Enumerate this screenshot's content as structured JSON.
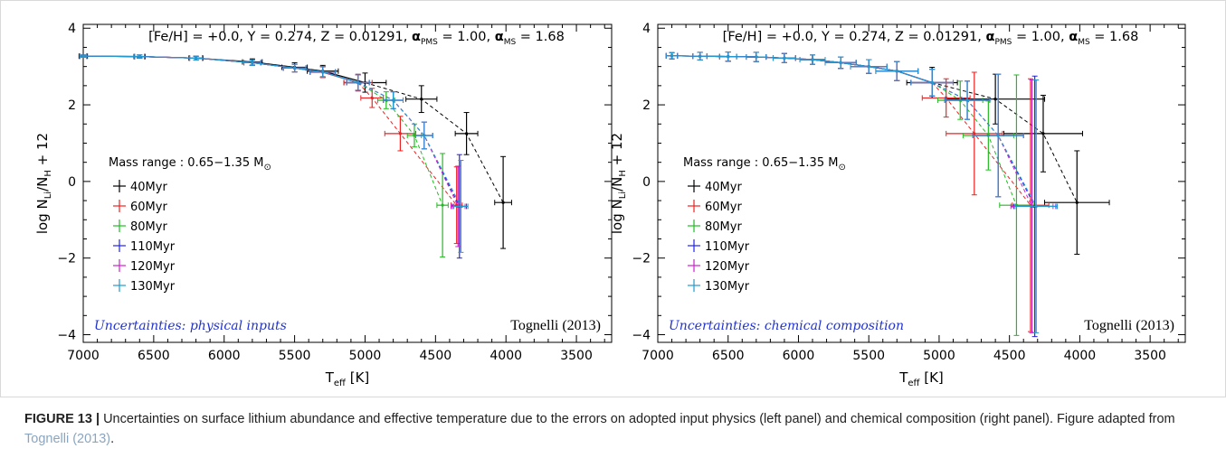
{
  "caption": {
    "label": "FIGURE 13 |",
    "text": "Uncertainties on surface lithium abundance and effective temperature due to the errors on adopted input physics (left panel) and chemical composition (right panel). Figure adapted from ",
    "ref": "Tognelli (2013)",
    "end": "."
  },
  "colors": {
    "40Myr": "#000000",
    "60Myr": "#ee2222",
    "80Myr": "#22bb22",
    "110Myr": "#2222ee",
    "120Myr": "#cc22cc",
    "130Myr": "#2299cc"
  },
  "chart_data": [
    {
      "type": "line",
      "title": "[Fe/H] = +0.0, Y = 0.274, Z = 0.01291, α_PMS = 1.00, α_MS = 1.68",
      "title_parts": {
        "main": "[Fe/H] = +0.0, Y = 0.274, Z = 0.01291, ",
        "a1": "α",
        "s1": "PMS",
        "v1": " = 1.00, ",
        "a2": "α",
        "s2": "MS",
        "v2": " = 1.68"
      },
      "xlabel": "T",
      "xlabel_sub": "eff",
      "xlabel_unit": " [K]",
      "ylabel": "log N",
      "ylabel_sub1": "Li",
      "ylabel_mid": "/N",
      "ylabel_sub2": "H",
      "ylabel_end": " + 12",
      "xlim": [
        7000,
        3250
      ],
      "ylim": [
        -4.2,
        4.1
      ],
      "xticks": [
        7000,
        6500,
        6000,
        5500,
        5000,
        4500,
        4000,
        3500
      ],
      "yticks": [
        -4,
        -2,
        0,
        2,
        4
      ],
      "legend_title": "Mass range : 0.65−1.35 M",
      "legend_sun": "⊙",
      "legend_placement": "center-left",
      "annotation": "Uncertainties: physical inputs",
      "reference": "Tognelli (2013)",
      "series": [
        {
          "name": "40Myr",
          "x": [
            7000,
            6600,
            6200,
            5800,
            5500,
            5300,
            5000,
            4600,
            4280,
            4020
          ],
          "y": [
            3.27,
            3.26,
            3.22,
            3.12,
            2.98,
            2.88,
            2.58,
            2.15,
            1.25,
            -0.55
          ],
          "xerr": [
            30,
            40,
            50,
            70,
            90,
            110,
            150,
            110,
            80,
            60
          ],
          "yerr": [
            0.03,
            0.04,
            0.05,
            0.08,
            0.12,
            0.15,
            0.25,
            0.35,
            0.55,
            1.2
          ]
        },
        {
          "name": "60Myr",
          "x": [
            7000,
            6600,
            6200,
            5800,
            5500,
            5300,
            5050,
            4950,
            4750,
            4350
          ],
          "y": [
            3.27,
            3.26,
            3.22,
            3.1,
            2.96,
            2.85,
            2.58,
            2.18,
            1.25,
            -0.62
          ],
          "xerr": [
            25,
            35,
            45,
            60,
            80,
            90,
            100,
            80,
            110,
            40
          ],
          "yerr": [
            0.03,
            0.04,
            0.05,
            0.07,
            0.1,
            0.14,
            0.22,
            0.25,
            0.45,
            1.0
          ]
        },
        {
          "name": "80Myr",
          "x": [
            7000,
            6600,
            6200,
            5800,
            5500,
            5300,
            5050,
            4850,
            4650,
            4450
          ],
          "y": [
            3.27,
            3.26,
            3.22,
            3.1,
            2.96,
            2.86,
            2.58,
            2.12,
            1.2,
            -0.62
          ],
          "xerr": [
            25,
            35,
            45,
            60,
            80,
            90,
            80,
            60,
            50,
            40
          ],
          "yerr": [
            0.03,
            0.04,
            0.05,
            0.07,
            0.1,
            0.14,
            0.2,
            0.22,
            0.3,
            1.35
          ]
        },
        {
          "name": "110Myr",
          "x": [
            7000,
            6600,
            6200,
            5800,
            5500,
            5300,
            5050,
            4800,
            4580,
            4330
          ],
          "y": [
            3.27,
            3.26,
            3.22,
            3.1,
            2.96,
            2.86,
            2.58,
            2.12,
            1.2,
            -0.65
          ],
          "xerr": [
            25,
            35,
            45,
            60,
            80,
            90,
            80,
            70,
            60,
            50
          ],
          "yerr": [
            0.03,
            0.04,
            0.05,
            0.07,
            0.1,
            0.14,
            0.2,
            0.22,
            0.35,
            1.35
          ]
        },
        {
          "name": "120Myr",
          "x": [
            7000,
            6600,
            6200,
            5800,
            5500,
            5300,
            5050,
            4800,
            4580,
            4340
          ],
          "y": [
            3.27,
            3.26,
            3.22,
            3.1,
            2.96,
            2.86,
            2.58,
            2.12,
            1.2,
            -0.65
          ],
          "xerr": [
            25,
            35,
            45,
            60,
            80,
            90,
            80,
            70,
            60,
            50
          ],
          "yerr": [
            0.03,
            0.04,
            0.05,
            0.07,
            0.1,
            0.14,
            0.2,
            0.22,
            0.35,
            1.05
          ]
        },
        {
          "name": "130Myr",
          "x": [
            7000,
            6600,
            6200,
            5800,
            5500,
            5300,
            5050,
            4800,
            4580,
            4320
          ],
          "y": [
            3.27,
            3.26,
            3.22,
            3.1,
            2.96,
            2.86,
            2.58,
            2.12,
            1.2,
            -0.65
          ],
          "xerr": [
            25,
            35,
            45,
            60,
            80,
            90,
            80,
            70,
            60,
            50
          ],
          "yerr": [
            0.03,
            0.04,
            0.05,
            0.07,
            0.1,
            0.14,
            0.2,
            0.22,
            0.35,
            1.2
          ]
        }
      ]
    },
    {
      "type": "line",
      "title": "[Fe/H] = +0.0, Y = 0.274, Z = 0.01291, α_PMS = 1.00, α_MS = 1.68",
      "title_parts": {
        "main": "[Fe/H] = +0.0, Y = 0.274, Z = 0.01291, ",
        "a1": "α",
        "s1": "PMS",
        "v1": " = 1.00, ",
        "a2": "α",
        "s2": "MS",
        "v2": " = 1.68"
      },
      "xlabel": "T",
      "xlabel_sub": "eff",
      "xlabel_unit": " [K]",
      "ylabel": "log N",
      "ylabel_sub1": "Li",
      "ylabel_mid": "/N",
      "ylabel_sub2": "H",
      "ylabel_end": " + 12",
      "xlim": [
        7000,
        3250
      ],
      "ylim": [
        -4.2,
        4.1
      ],
      "xticks": [
        7000,
        6500,
        6000,
        5500,
        5000,
        4500,
        4000,
        3500
      ],
      "yticks": [
        -4,
        -2,
        0,
        2,
        4
      ],
      "legend_title": "Mass range : 0.65−1.35 M",
      "legend_sun": "⊙",
      "legend_placement": "center-left",
      "annotation": "Uncertainties: chemical composition",
      "reference": "Tognelli (2013)",
      "series": [
        {
          "name": "40Myr",
          "x": [
            6900,
            6700,
            6500,
            6300,
            6100,
            5900,
            5700,
            5500,
            5300,
            5050,
            4600,
            4260,
            4020
          ],
          "y": [
            3.28,
            3.27,
            3.26,
            3.25,
            3.22,
            3.18,
            3.1,
            3.0,
            2.88,
            2.58,
            2.15,
            1.25,
            -0.55
          ],
          "xerr": [
            40,
            50,
            60,
            70,
            80,
            90,
            110,
            130,
            150,
            180,
            350,
            280,
            230
          ],
          "yerr": [
            0.08,
            0.1,
            0.12,
            0.12,
            0.12,
            0.12,
            0.15,
            0.18,
            0.25,
            0.4,
            0.65,
            1.0,
            1.35
          ]
        },
        {
          "name": "60Myr",
          "x": [
            6900,
            6700,
            6500,
            6300,
            6100,
            5900,
            5700,
            5500,
            5300,
            5050,
            4950,
            4750,
            4350
          ],
          "y": [
            3.28,
            3.27,
            3.26,
            3.25,
            3.22,
            3.18,
            3.1,
            3.0,
            2.88,
            2.58,
            2.18,
            1.25,
            -0.62
          ],
          "xerr": [
            40,
            50,
            60,
            70,
            80,
            90,
            110,
            130,
            150,
            150,
            170,
            200,
            130
          ],
          "yerr": [
            0.08,
            0.1,
            0.12,
            0.12,
            0.12,
            0.12,
            0.15,
            0.18,
            0.25,
            0.35,
            0.5,
            1.6,
            3.3
          ]
        },
        {
          "name": "80Myr",
          "x": [
            6900,
            6700,
            6500,
            6300,
            6100,
            5900,
            5700,
            5500,
            5300,
            5050,
            4850,
            4650,
            4450
          ],
          "y": [
            3.28,
            3.27,
            3.26,
            3.25,
            3.22,
            3.18,
            3.1,
            3.0,
            2.88,
            2.58,
            2.12,
            1.2,
            -0.62
          ],
          "xerr": [
            40,
            50,
            60,
            70,
            80,
            90,
            110,
            130,
            150,
            150,
            160,
            180,
            120
          ],
          "yerr": [
            0.08,
            0.1,
            0.12,
            0.12,
            0.12,
            0.12,
            0.15,
            0.18,
            0.25,
            0.35,
            0.5,
            0.9,
            3.4
          ]
        },
        {
          "name": "110Myr",
          "x": [
            6900,
            6700,
            6500,
            6300,
            6100,
            5900,
            5700,
            5500,
            5300,
            5050,
            4800,
            4580,
            4320
          ],
          "y": [
            3.28,
            3.27,
            3.26,
            3.25,
            3.22,
            3.18,
            3.1,
            3.0,
            2.88,
            2.58,
            2.12,
            1.2,
            -0.65
          ],
          "xerr": [
            40,
            50,
            60,
            70,
            80,
            90,
            110,
            130,
            150,
            150,
            160,
            180,
            150
          ],
          "yerr": [
            0.08,
            0.1,
            0.12,
            0.12,
            0.12,
            0.12,
            0.15,
            0.18,
            0.25,
            0.35,
            0.5,
            1.6,
            3.4
          ]
        },
        {
          "name": "120Myr",
          "x": [
            6900,
            6700,
            6500,
            6300,
            6100,
            5900,
            5700,
            5500,
            5300,
            5050,
            4800,
            4580,
            4340
          ],
          "y": [
            3.28,
            3.27,
            3.26,
            3.25,
            3.22,
            3.18,
            3.1,
            3.0,
            2.88,
            2.58,
            2.12,
            1.2,
            -0.65
          ],
          "xerr": [
            40,
            50,
            60,
            70,
            80,
            90,
            110,
            130,
            150,
            150,
            160,
            180,
            150
          ],
          "yerr": [
            0.08,
            0.1,
            0.12,
            0.12,
            0.12,
            0.12,
            0.15,
            0.18,
            0.25,
            0.35,
            0.5,
            1.6,
            3.3
          ]
        },
        {
          "name": "130Myr",
          "x": [
            6900,
            6700,
            6500,
            6300,
            6100,
            5900,
            5700,
            5500,
            5300,
            5050,
            4800,
            4580,
            4310
          ],
          "y": [
            3.28,
            3.27,
            3.26,
            3.25,
            3.22,
            3.18,
            3.1,
            3.0,
            2.88,
            2.58,
            2.12,
            1.2,
            -0.65
          ],
          "xerr": [
            40,
            50,
            60,
            70,
            80,
            90,
            110,
            130,
            150,
            150,
            160,
            180,
            150
          ],
          "yerr": [
            0.08,
            0.1,
            0.12,
            0.12,
            0.12,
            0.12,
            0.15,
            0.18,
            0.25,
            0.35,
            0.5,
            1.6,
            3.3
          ]
        }
      ]
    }
  ]
}
